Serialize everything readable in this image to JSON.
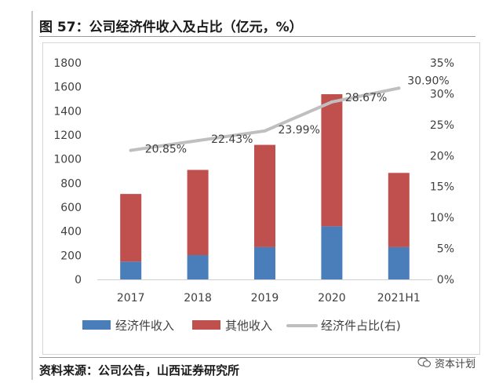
{
  "figure": {
    "title": "图 57：公司经济件收入及占比（亿元，%）",
    "source": "资料来源：公司公告，山西证券研究所",
    "watermark": "资本计划"
  },
  "chart_data": {
    "type": "bar",
    "stacked": true,
    "categories": [
      "2017",
      "2018",
      "2019",
      "2020",
      "2021H1"
    ],
    "series": [
      {
        "name": "经济件收入",
        "kind": "bar",
        "axis": "left",
        "color": "#4a7ebb",
        "values": [
          148,
          202,
          268,
          441,
          268
        ]
      },
      {
        "name": "其他收入",
        "kind": "bar",
        "axis": "left",
        "color": "#c0504d",
        "values": [
          562,
          708,
          850,
          1098,
          617
        ]
      },
      {
        "name": "经济件占比(右)",
        "kind": "line",
        "axis": "right",
        "color": "#bfbfbf",
        "values": [
          20.85,
          22.43,
          23.99,
          28.67,
          30.9
        ],
        "labels": [
          "20.85%",
          "22.43%",
          "23.99%",
          "28.67%",
          "30.90%"
        ]
      }
    ],
    "y_left": {
      "min": 0,
      "max": 1800,
      "step": 200,
      "ticks": [
        "0",
        "200",
        "400",
        "600",
        "800",
        "1000",
        "1200",
        "1400",
        "1600",
        "1800"
      ]
    },
    "y_right": {
      "min": 0,
      "max": 35,
      "step": 5,
      "ticks": [
        "0%",
        "5%",
        "10%",
        "15%",
        "20%",
        "25%",
        "30%",
        "35%"
      ]
    },
    "legend": {
      "position": "bottom",
      "entries": [
        "经济件收入",
        "其他收入",
        "经济件占比(右)"
      ]
    },
    "grid": false
  }
}
